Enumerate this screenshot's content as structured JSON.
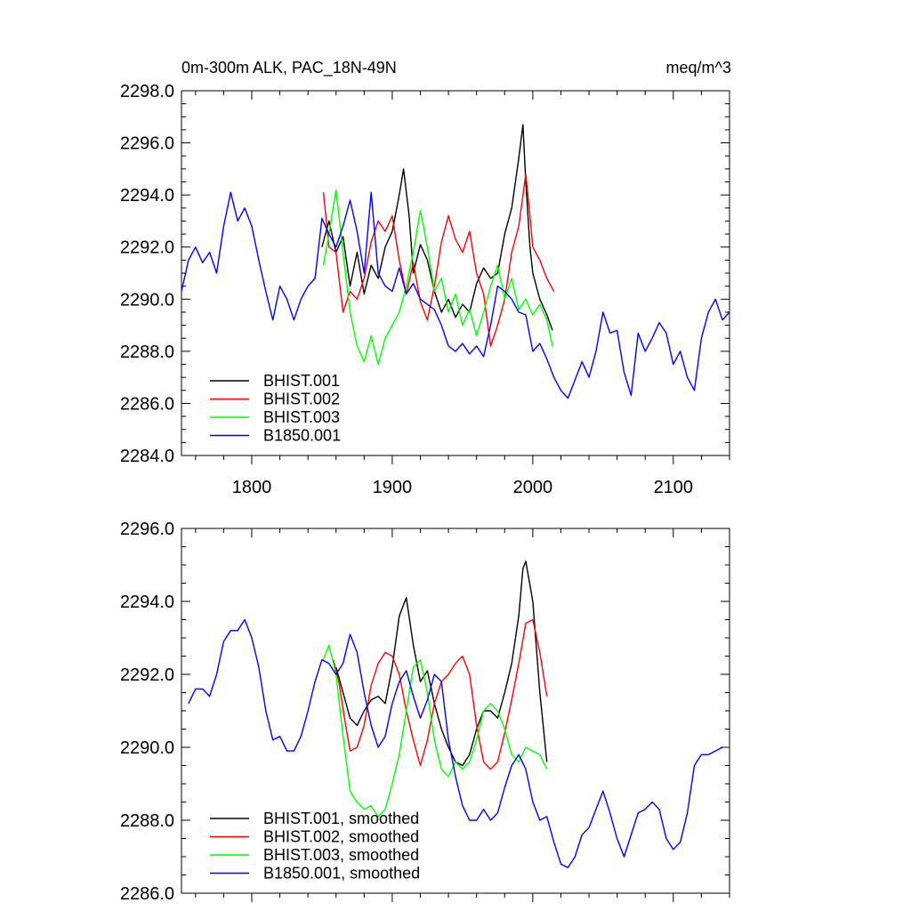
{
  "chart_data": [
    {
      "type": "line",
      "title": "0m-300m ALK, PAC_18N-49N",
      "units": "meq/m^3",
      "xlim": [
        1750,
        2140
      ],
      "ylim": [
        2284,
        2298
      ],
      "yticks": [
        "2284.0",
        "2286.0",
        "2288.0",
        "2290.0",
        "2292.0",
        "2294.0",
        "2296.0",
        "2298.0"
      ],
      "xticks": [
        "1800",
        "1900",
        "2000",
        "2100"
      ],
      "legend_position": "bottom-left",
      "colors": [
        "#000000",
        "#ff0000",
        "#00ff00",
        "#0000ff"
      ],
      "series": [
        {
          "name": "BHIST.001",
          "color": "#000000",
          "x": [
            1850,
            1855,
            1860,
            1865,
            1870,
            1875,
            1880,
            1885,
            1890,
            1895,
            1900,
            1905,
            1908,
            1912,
            1915,
            1920,
            1925,
            1930,
            1935,
            1940,
            1945,
            1950,
            1955,
            1960,
            1965,
            1970,
            1975,
            1980,
            1985,
            1990,
            1993,
            1995,
            1998,
            2000,
            2005,
            2010,
            2014
          ],
          "values": [
            2292.0,
            2293.0,
            2291.8,
            2292.4,
            2290.5,
            2291.8,
            2290.2,
            2291.3,
            2290.8,
            2292.0,
            2292.6,
            2294.0,
            2295.0,
            2293.2,
            2291.0,
            2292.1,
            2291.5,
            2290.3,
            2289.5,
            2290.0,
            2289.3,
            2289.8,
            2289.5,
            2290.6,
            2291.2,
            2290.8,
            2291.0,
            2292.5,
            2293.5,
            2295.4,
            2296.7,
            2294.5,
            2292.0,
            2291.0,
            2290.0,
            2289.4,
            2288.8
          ]
        },
        {
          "name": "BHIST.002",
          "color": "#ff0000",
          "x": [
            1851,
            1855,
            1860,
            1865,
            1870,
            1875,
            1880,
            1885,
            1890,
            1895,
            1900,
            1905,
            1910,
            1915,
            1920,
            1925,
            1930,
            1935,
            1940,
            1945,
            1950,
            1955,
            1960,
            1965,
            1970,
            1975,
            1980,
            1985,
            1990,
            1995,
            1998,
            2000,
            2005,
            2010,
            2015
          ],
          "values": [
            2294.1,
            2292.0,
            2291.8,
            2289.5,
            2290.3,
            2290.0,
            2290.8,
            2292.2,
            2293.0,
            2292.6,
            2293.2,
            2291.5,
            2290.2,
            2291.4,
            2289.9,
            2289.2,
            2290.5,
            2292.2,
            2293.2,
            2292.3,
            2291.8,
            2292.6,
            2291.0,
            2290.2,
            2288.2,
            2289.0,
            2290.0,
            2291.8,
            2292.8,
            2294.8,
            2293.2,
            2292.0,
            2291.5,
            2290.8,
            2290.3
          ]
        },
        {
          "name": "BHIST.003",
          "color": "#00ff00",
          "x": [
            1851,
            1855,
            1860,
            1865,
            1870,
            1875,
            1880,
            1885,
            1890,
            1895,
            1900,
            1905,
            1910,
            1915,
            1920,
            1925,
            1930,
            1935,
            1940,
            1945,
            1950,
            1955,
            1960,
            1965,
            1970,
            1975,
            1980,
            1985,
            1990,
            1995,
            2000,
            2005,
            2010,
            2014
          ],
          "values": [
            2291.3,
            2292.5,
            2294.2,
            2291.8,
            2289.5,
            2288.2,
            2287.6,
            2288.6,
            2287.5,
            2288.5,
            2289.0,
            2289.5,
            2290.5,
            2291.8,
            2293.4,
            2292.0,
            2290.3,
            2290.8,
            2289.5,
            2290.2,
            2289.0,
            2289.6,
            2288.6,
            2289.5,
            2290.5,
            2291.3,
            2290.0,
            2290.8,
            2289.6,
            2290.0,
            2289.4,
            2289.8,
            2289.2,
            2288.2
          ]
        },
        {
          "name": "B1850.001",
          "color": "#0000ff",
          "x": [
            1750,
            1755,
            1760,
            1765,
            1770,
            1775,
            1780,
            1785,
            1790,
            1795,
            1800,
            1805,
            1810,
            1815,
            1820,
            1825,
            1830,
            1835,
            1840,
            1845,
            1850,
            1855,
            1860,
            1865,
            1870,
            1875,
            1880,
            1885,
            1890,
            1895,
            1900,
            1905,
            1910,
            1915,
            1920,
            1925,
            1930,
            1935,
            1940,
            1945,
            1950,
            1955,
            1960,
            1965,
            1970,
            1975,
            1980,
            1985,
            1990,
            1995,
            2000,
            2005,
            2010,
            2015,
            2020,
            2025,
            2030,
            2035,
            2040,
            2045,
            2050,
            2055,
            2060,
            2065,
            2070,
            2075,
            2080,
            2085,
            2090,
            2095,
            2100,
            2105,
            2110,
            2115,
            2120,
            2125,
            2130,
            2135,
            2140
          ],
          "values": [
            2290.3,
            2291.5,
            2292.0,
            2291.4,
            2291.8,
            2291.0,
            2292.8,
            2294.1,
            2293.0,
            2293.5,
            2292.8,
            2291.5,
            2290.3,
            2289.2,
            2290.5,
            2290.0,
            2289.2,
            2290.0,
            2290.5,
            2290.8,
            2293.1,
            2292.5,
            2292.0,
            2292.8,
            2293.8,
            2292.6,
            2291.0,
            2294.1,
            2291.0,
            2290.5,
            2290.3,
            2291.2,
            2290.2,
            2290.6,
            2290.0,
            2289.8,
            2289.6,
            2289.0,
            2288.2,
            2288.0,
            2288.3,
            2287.9,
            2288.2,
            2287.8,
            2289.0,
            2290.5,
            2290.3,
            2290.0,
            2289.5,
            2289.4,
            2288.0,
            2288.3,
            2287.7,
            2287.0,
            2286.5,
            2286.2,
            2286.9,
            2287.6,
            2287.0,
            2288.0,
            2289.5,
            2288.7,
            2288.8,
            2287.2,
            2286.3,
            2288.7,
            2288.0,
            2288.5,
            2289.1,
            2288.7,
            2287.5,
            2288.0,
            2287.0,
            2286.5,
            2288.5,
            2289.5,
            2290.0,
            2289.2,
            2289.5
          ]
        }
      ]
    },
    {
      "type": "line",
      "xlim": [
        1750,
        2140
      ],
      "ylim": [
        2286,
        2296
      ],
      "yticks": [
        "2286.0",
        "2288.0",
        "2290.0",
        "2292.0",
        "2294.0",
        "2296.0"
      ],
      "legend_position": "bottom-left",
      "series": [
        {
          "name": "BHIST.001, smoothed",
          "color": "#000000",
          "x": [
            1860,
            1865,
            1870,
            1875,
            1880,
            1885,
            1890,
            1895,
            1900,
            1905,
            1910,
            1915,
            1920,
            1925,
            1930,
            1935,
            1940,
            1945,
            1950,
            1955,
            1960,
            1965,
            1970,
            1975,
            1980,
            1985,
            1990,
            1993,
            1995,
            2000,
            2005,
            2010
          ],
          "values": [
            2292.2,
            2291.5,
            2290.8,
            2290.6,
            2291.0,
            2291.3,
            2291.4,
            2291.2,
            2292.2,
            2293.6,
            2294.1,
            2292.8,
            2291.8,
            2292.1,
            2291.2,
            2290.5,
            2290.0,
            2289.6,
            2289.5,
            2289.8,
            2290.5,
            2291.0,
            2291.0,
            2290.8,
            2291.5,
            2292.3,
            2293.6,
            2294.9,
            2295.1,
            2294.0,
            2291.5,
            2289.6
          ]
        },
        {
          "name": "BHIST.002, smoothed",
          "color": "#ff0000",
          "x": [
            1858,
            1862,
            1866,
            1870,
            1875,
            1880,
            1885,
            1890,
            1895,
            1900,
            1905,
            1910,
            1915,
            1920,
            1925,
            1930,
            1935,
            1940,
            1945,
            1950,
            1955,
            1960,
            1965,
            1970,
            1975,
            1980,
            1985,
            1990,
            1995,
            2000,
            2005,
            2010
          ],
          "values": [
            2292.4,
            2291.8,
            2290.8,
            2289.9,
            2290.0,
            2290.6,
            2291.7,
            2292.3,
            2292.6,
            2292.5,
            2292.0,
            2291.0,
            2290.2,
            2289.5,
            2290.2,
            2291.2,
            2291.8,
            2292.0,
            2292.3,
            2292.5,
            2292.0,
            2290.6,
            2289.6,
            2289.4,
            2289.6,
            2290.4,
            2291.3,
            2292.3,
            2293.4,
            2293.5,
            2292.6,
            2291.4
          ]
        },
        {
          "name": "BHIST.003, smoothed",
          "color": "#00ff00",
          "x": [
            1851,
            1855,
            1860,
            1865,
            1870,
            1875,
            1880,
            1885,
            1890,
            1895,
            1900,
            1905,
            1910,
            1915,
            1920,
            1925,
            1930,
            1935,
            1940,
            1945,
            1950,
            1955,
            1960,
            1965,
            1970,
            1975,
            1980,
            1985,
            1990,
            1995,
            2000,
            2005,
            2010
          ],
          "values": [
            2292.4,
            2292.8,
            2292.0,
            2290.3,
            2288.8,
            2288.5,
            2288.3,
            2288.4,
            2288.1,
            2288.3,
            2289.0,
            2289.8,
            2291.0,
            2292.2,
            2292.4,
            2291.5,
            2290.2,
            2289.4,
            2289.2,
            2289.6,
            2289.4,
            2289.6,
            2290.2,
            2291.0,
            2291.2,
            2291.0,
            2290.5,
            2289.8,
            2289.6,
            2290.0,
            2289.9,
            2289.8,
            2289.4
          ]
        },
        {
          "name": "B1850.001, smoothed",
          "color": "#0000ff",
          "x": [
            1755,
            1760,
            1765,
            1770,
            1775,
            1780,
            1785,
            1790,
            1795,
            1800,
            1805,
            1810,
            1815,
            1820,
            1825,
            1830,
            1835,
            1840,
            1845,
            1850,
            1855,
            1860,
            1865,
            1870,
            1875,
            1880,
            1885,
            1890,
            1895,
            1900,
            1905,
            1910,
            1915,
            1920,
            1925,
            1930,
            1935,
            1940,
            1945,
            1950,
            1955,
            1960,
            1965,
            1970,
            1975,
            1980,
            1985,
            1990,
            1995,
            2000,
            2005,
            2010,
            2015,
            2020,
            2025,
            2030,
            2035,
            2040,
            2045,
            2050,
            2055,
            2060,
            2065,
            2070,
            2075,
            2080,
            2085,
            2090,
            2095,
            2100,
            2105,
            2110,
            2115,
            2120,
            2125,
            2130,
            2135
          ],
          "values": [
            2291.2,
            2291.6,
            2291.6,
            2291.4,
            2292.0,
            2292.9,
            2293.2,
            2293.2,
            2293.5,
            2293.0,
            2292.2,
            2291.0,
            2290.2,
            2290.3,
            2289.9,
            2289.9,
            2290.3,
            2291.0,
            2291.8,
            2292.4,
            2292.3,
            2292.0,
            2292.3,
            2293.1,
            2292.6,
            2291.5,
            2290.6,
            2290.0,
            2290.3,
            2291.2,
            2291.8,
            2292.1,
            2291.4,
            2290.8,
            2291.3,
            2292.0,
            2291.8,
            2290.2,
            2289.2,
            2288.4,
            2288.0,
            2288.0,
            2288.3,
            2288.0,
            2288.2,
            2288.9,
            2289.5,
            2289.8,
            2289.4,
            2288.5,
            2288.0,
            2288.1,
            2287.4,
            2286.8,
            2286.7,
            2287.0,
            2287.6,
            2287.8,
            2288.3,
            2288.8,
            2288.2,
            2287.5,
            2287.0,
            2287.6,
            2288.2,
            2288.3,
            2288.5,
            2288.3,
            2287.5,
            2287.2,
            2287.4,
            2288.2,
            2289.5,
            2289.8,
            2289.8,
            2289.9,
            2290.0
          ]
        }
      ]
    }
  ]
}
